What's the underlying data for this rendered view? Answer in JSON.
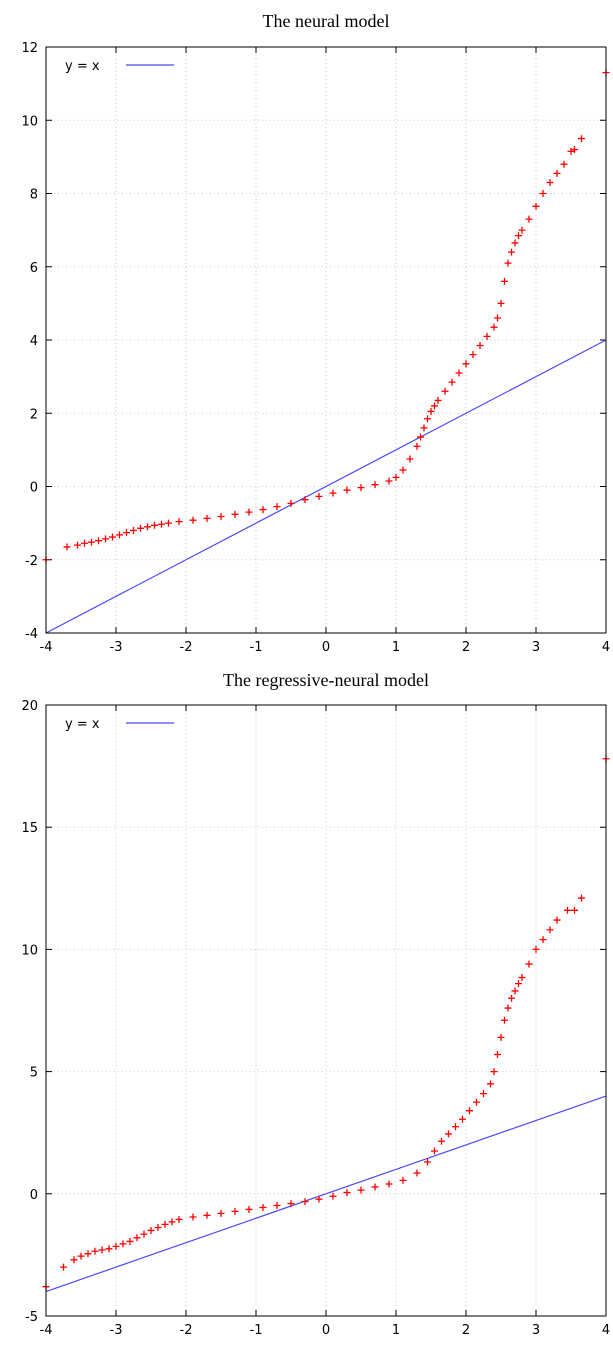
{
  "chart_data": [
    {
      "type": "scatter",
      "title": "The neural model",
      "xlabel": "",
      "ylabel": "",
      "xlim": [
        -4,
        4
      ],
      "ylim": [
        -4,
        12
      ],
      "xticks": [
        "-4",
        "-3",
        "-2",
        "-1",
        "0",
        "1",
        "2",
        "3",
        "4"
      ],
      "yticks": [
        "-4",
        "-2",
        "0",
        "2",
        "4",
        "6",
        "8",
        "10",
        "12"
      ],
      "grid": true,
      "legend_position": "top-left",
      "reference_line": {
        "label": "y = x",
        "color": "#4a4aff",
        "x": [
          -4,
          4
        ],
        "y": [
          -4,
          4
        ]
      },
      "series": [
        {
          "color": "#ff0000",
          "marker": "+",
          "x": [
            -4,
            -3.7,
            -3.55,
            -3.45,
            -3.35,
            -3.25,
            -3.15,
            -3.05,
            -2.95,
            -2.85,
            -2.75,
            -2.65,
            -2.55,
            -2.45,
            -2.35,
            -2.25,
            -2.1,
            -1.9,
            -1.7,
            -1.5,
            -1.3,
            -1.1,
            -0.9,
            -0.7,
            -0.5,
            -0.3,
            -0.1,
            0.1,
            0.3,
            0.5,
            0.7,
            0.9,
            1.0,
            1.1,
            1.2,
            1.3,
            1.35,
            1.4,
            1.45,
            1.5,
            1.55,
            1.6,
            1.7,
            1.8,
            1.9,
            2.0,
            2.1,
            2.2,
            2.3,
            2.4,
            2.45,
            2.5,
            2.55,
            2.6,
            2.65,
            2.7,
            2.75,
            2.8,
            2.9,
            3.0,
            3.1,
            3.2,
            3.3,
            3.4,
            3.5,
            3.55,
            3.65,
            4.0
          ],
          "y": [
            -2.0,
            -1.65,
            -1.6,
            -1.55,
            -1.52,
            -1.48,
            -1.43,
            -1.38,
            -1.32,
            -1.26,
            -1.2,
            -1.14,
            -1.1,
            -1.06,
            -1.03,
            -1.0,
            -0.96,
            -0.92,
            -0.87,
            -0.82,
            -0.76,
            -0.7,
            -0.63,
            -0.55,
            -0.46,
            -0.36,
            -0.27,
            -0.18,
            -0.1,
            -0.03,
            0.05,
            0.15,
            0.25,
            0.45,
            0.75,
            1.1,
            1.35,
            1.6,
            1.85,
            2.05,
            2.2,
            2.35,
            2.6,
            2.85,
            3.1,
            3.35,
            3.6,
            3.85,
            4.1,
            4.35,
            4.6,
            5.0,
            5.6,
            6.1,
            6.4,
            6.65,
            6.85,
            7.0,
            7.3,
            7.65,
            8.0,
            8.3,
            8.55,
            8.8,
            9.15,
            9.2,
            9.5,
            11.3
          ]
        }
      ]
    },
    {
      "type": "scatter",
      "title": "The regressive-neural model",
      "xlabel": "",
      "ylabel": "",
      "xlim": [
        -4,
        4
      ],
      "ylim": [
        -5,
        20
      ],
      "xticks": [
        "-4",
        "-3",
        "-2",
        "-1",
        "0",
        "1",
        "2",
        "3",
        "4"
      ],
      "yticks": [
        "-5",
        "0",
        "5",
        "10",
        "15",
        "20"
      ],
      "grid": true,
      "legend_position": "top-left",
      "reference_line": {
        "label": "y = x",
        "color": "#4a4aff",
        "x": [
          -4,
          4
        ],
        "y": [
          -4,
          4
        ]
      },
      "series": [
        {
          "color": "#ff0000",
          "marker": "+",
          "x": [
            -4,
            -3.75,
            -3.6,
            -3.5,
            -3.4,
            -3.3,
            -3.2,
            -3.1,
            -3.0,
            -2.9,
            -2.8,
            -2.7,
            -2.6,
            -2.5,
            -2.4,
            -2.3,
            -2.2,
            -2.1,
            -1.9,
            -1.7,
            -1.5,
            -1.3,
            -1.1,
            -0.9,
            -0.7,
            -0.5,
            -0.3,
            -0.1,
            0.1,
            0.3,
            0.5,
            0.7,
            0.9,
            1.1,
            1.3,
            1.45,
            1.55,
            1.65,
            1.75,
            1.85,
            1.95,
            2.05,
            2.15,
            2.25,
            2.35,
            2.4,
            2.45,
            2.5,
            2.55,
            2.6,
            2.65,
            2.7,
            2.75,
            2.8,
            2.9,
            3.0,
            3.1,
            3.2,
            3.3,
            3.45,
            3.55,
            3.65,
            4.0
          ],
          "y": [
            -3.8,
            -3.0,
            -2.7,
            -2.55,
            -2.45,
            -2.35,
            -2.3,
            -2.25,
            -2.15,
            -2.05,
            -1.95,
            -1.8,
            -1.65,
            -1.5,
            -1.38,
            -1.25,
            -1.15,
            -1.05,
            -0.95,
            -0.88,
            -0.8,
            -0.72,
            -0.64,
            -0.56,
            -0.48,
            -0.4,
            -0.32,
            -0.22,
            -0.1,
            0.05,
            0.15,
            0.28,
            0.4,
            0.55,
            0.85,
            1.3,
            1.75,
            2.15,
            2.45,
            2.75,
            3.05,
            3.4,
            3.75,
            4.1,
            4.5,
            5.0,
            5.7,
            6.4,
            7.1,
            7.6,
            8.0,
            8.3,
            8.6,
            8.85,
            9.4,
            10.0,
            10.4,
            10.8,
            11.2,
            11.6,
            11.6,
            12.1,
            17.8
          ]
        }
      ]
    }
  ]
}
